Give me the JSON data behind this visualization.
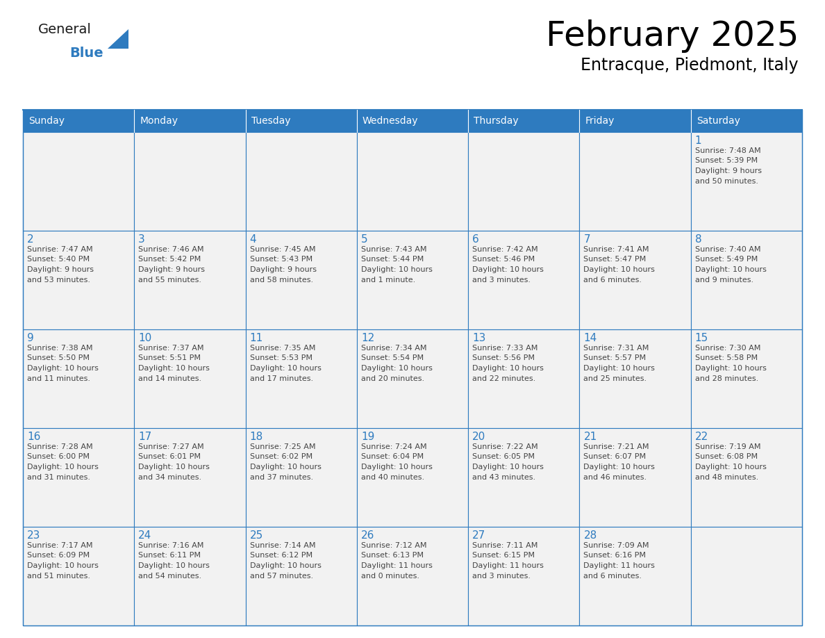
{
  "title": "February 2025",
  "subtitle": "Entracque, Piedmont, Italy",
  "header_bg": "#2E7BBF",
  "header_text_color": "#FFFFFF",
  "cell_bg_light": "#F2F2F2",
  "cell_bg_white": "#FFFFFF",
  "cell_border_color": "#2E7BBF",
  "day_number_color": "#2E7BBF",
  "info_text_color": "#444444",
  "days_of_week": [
    "Sunday",
    "Monday",
    "Tuesday",
    "Wednesday",
    "Thursday",
    "Friday",
    "Saturday"
  ],
  "logo_general_color": "#1A1A1A",
  "logo_blue_color": "#2E7BBF",
  "weeks": [
    [
      {
        "day": null,
        "info": ""
      },
      {
        "day": null,
        "info": ""
      },
      {
        "day": null,
        "info": ""
      },
      {
        "day": null,
        "info": ""
      },
      {
        "day": null,
        "info": ""
      },
      {
        "day": null,
        "info": ""
      },
      {
        "day": 1,
        "info": "Sunrise: 7:48 AM\nSunset: 5:39 PM\nDaylight: 9 hours\nand 50 minutes."
      }
    ],
    [
      {
        "day": 2,
        "info": "Sunrise: 7:47 AM\nSunset: 5:40 PM\nDaylight: 9 hours\nand 53 minutes."
      },
      {
        "day": 3,
        "info": "Sunrise: 7:46 AM\nSunset: 5:42 PM\nDaylight: 9 hours\nand 55 minutes."
      },
      {
        "day": 4,
        "info": "Sunrise: 7:45 AM\nSunset: 5:43 PM\nDaylight: 9 hours\nand 58 minutes."
      },
      {
        "day": 5,
        "info": "Sunrise: 7:43 AM\nSunset: 5:44 PM\nDaylight: 10 hours\nand 1 minute."
      },
      {
        "day": 6,
        "info": "Sunrise: 7:42 AM\nSunset: 5:46 PM\nDaylight: 10 hours\nand 3 minutes."
      },
      {
        "day": 7,
        "info": "Sunrise: 7:41 AM\nSunset: 5:47 PM\nDaylight: 10 hours\nand 6 minutes."
      },
      {
        "day": 8,
        "info": "Sunrise: 7:40 AM\nSunset: 5:49 PM\nDaylight: 10 hours\nand 9 minutes."
      }
    ],
    [
      {
        "day": 9,
        "info": "Sunrise: 7:38 AM\nSunset: 5:50 PM\nDaylight: 10 hours\nand 11 minutes."
      },
      {
        "day": 10,
        "info": "Sunrise: 7:37 AM\nSunset: 5:51 PM\nDaylight: 10 hours\nand 14 minutes."
      },
      {
        "day": 11,
        "info": "Sunrise: 7:35 AM\nSunset: 5:53 PM\nDaylight: 10 hours\nand 17 minutes."
      },
      {
        "day": 12,
        "info": "Sunrise: 7:34 AM\nSunset: 5:54 PM\nDaylight: 10 hours\nand 20 minutes."
      },
      {
        "day": 13,
        "info": "Sunrise: 7:33 AM\nSunset: 5:56 PM\nDaylight: 10 hours\nand 22 minutes."
      },
      {
        "day": 14,
        "info": "Sunrise: 7:31 AM\nSunset: 5:57 PM\nDaylight: 10 hours\nand 25 minutes."
      },
      {
        "day": 15,
        "info": "Sunrise: 7:30 AM\nSunset: 5:58 PM\nDaylight: 10 hours\nand 28 minutes."
      }
    ],
    [
      {
        "day": 16,
        "info": "Sunrise: 7:28 AM\nSunset: 6:00 PM\nDaylight: 10 hours\nand 31 minutes."
      },
      {
        "day": 17,
        "info": "Sunrise: 7:27 AM\nSunset: 6:01 PM\nDaylight: 10 hours\nand 34 minutes."
      },
      {
        "day": 18,
        "info": "Sunrise: 7:25 AM\nSunset: 6:02 PM\nDaylight: 10 hours\nand 37 minutes."
      },
      {
        "day": 19,
        "info": "Sunrise: 7:24 AM\nSunset: 6:04 PM\nDaylight: 10 hours\nand 40 minutes."
      },
      {
        "day": 20,
        "info": "Sunrise: 7:22 AM\nSunset: 6:05 PM\nDaylight: 10 hours\nand 43 minutes."
      },
      {
        "day": 21,
        "info": "Sunrise: 7:21 AM\nSunset: 6:07 PM\nDaylight: 10 hours\nand 46 minutes."
      },
      {
        "day": 22,
        "info": "Sunrise: 7:19 AM\nSunset: 6:08 PM\nDaylight: 10 hours\nand 48 minutes."
      }
    ],
    [
      {
        "day": 23,
        "info": "Sunrise: 7:17 AM\nSunset: 6:09 PM\nDaylight: 10 hours\nand 51 minutes."
      },
      {
        "day": 24,
        "info": "Sunrise: 7:16 AM\nSunset: 6:11 PM\nDaylight: 10 hours\nand 54 minutes."
      },
      {
        "day": 25,
        "info": "Sunrise: 7:14 AM\nSunset: 6:12 PM\nDaylight: 10 hours\nand 57 minutes."
      },
      {
        "day": 26,
        "info": "Sunrise: 7:12 AM\nSunset: 6:13 PM\nDaylight: 11 hours\nand 0 minutes."
      },
      {
        "day": 27,
        "info": "Sunrise: 7:11 AM\nSunset: 6:15 PM\nDaylight: 11 hours\nand 3 minutes."
      },
      {
        "day": 28,
        "info": "Sunrise: 7:09 AM\nSunset: 6:16 PM\nDaylight: 11 hours\nand 6 minutes."
      },
      {
        "day": null,
        "info": ""
      }
    ]
  ]
}
